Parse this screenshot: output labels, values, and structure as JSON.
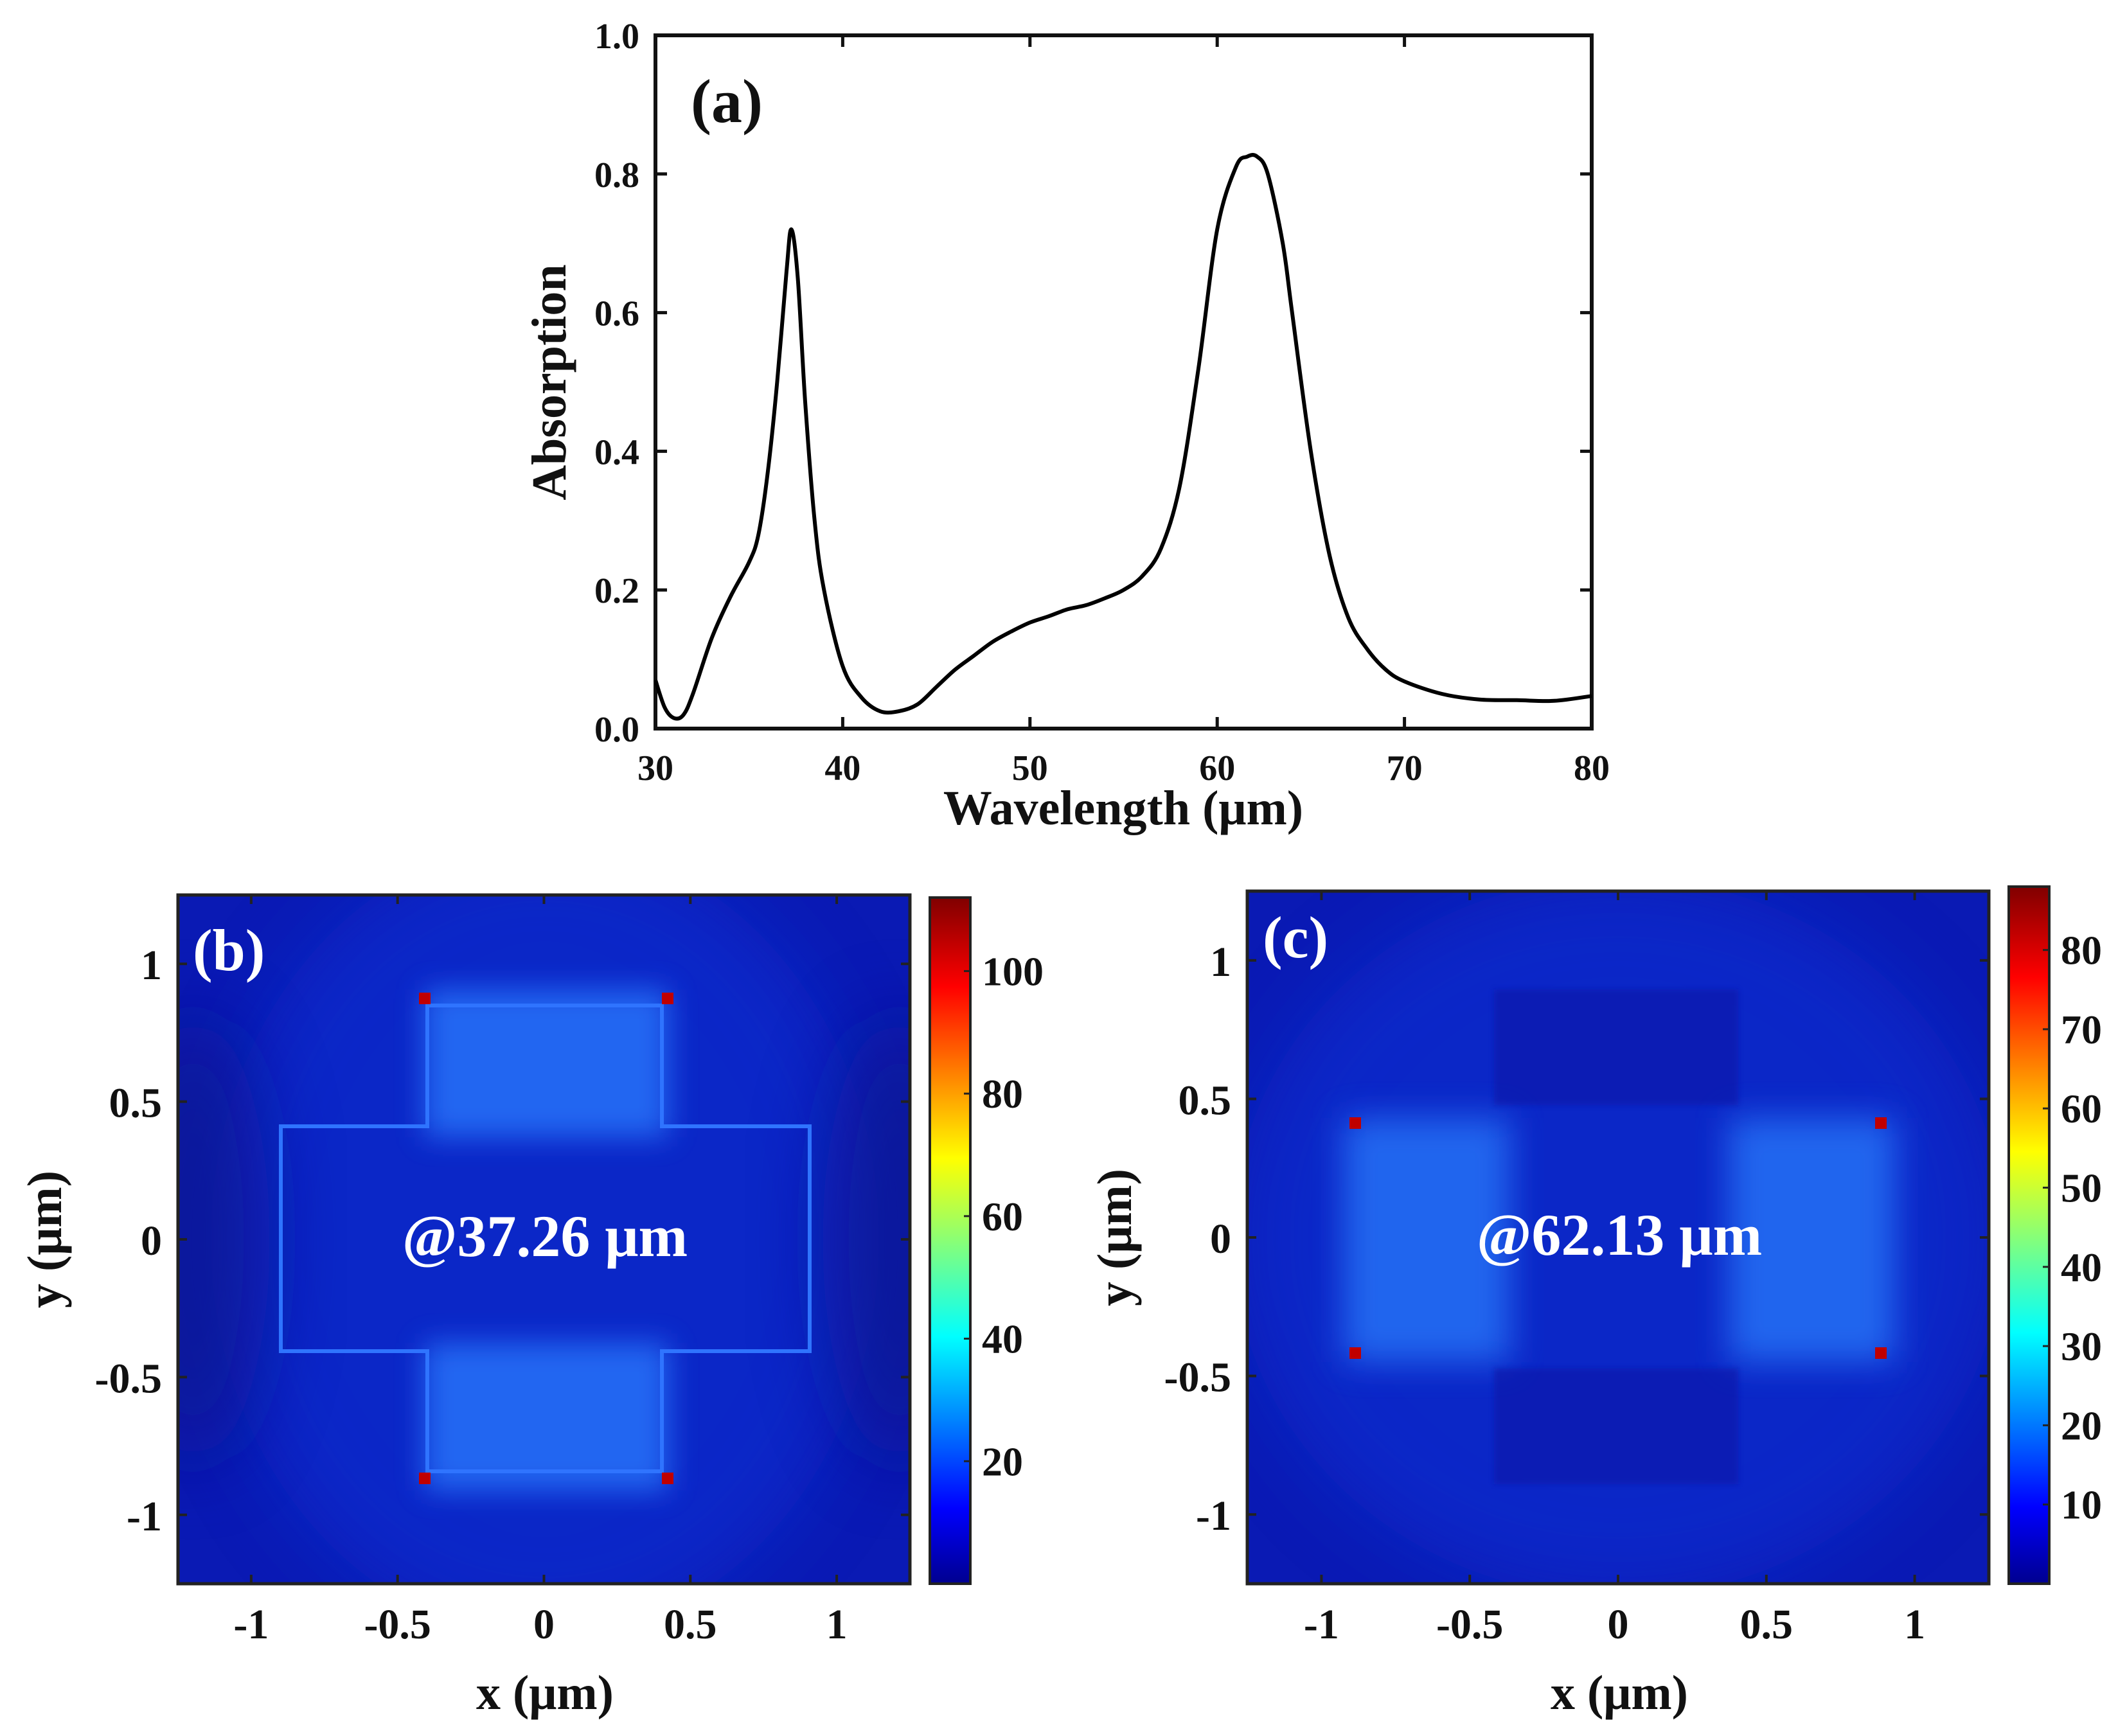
{
  "chart_data": [
    {
      "id": "a",
      "type": "line",
      "panel_label": "(a)",
      "xlabel": "Wavelength (μm)",
      "ylabel": "Absorption",
      "xlim": [
        30,
        80
      ],
      "ylim": [
        0.0,
        1.0
      ],
      "xticks": [
        30,
        40,
        50,
        60,
        70,
        80
      ],
      "xtick_labels": [
        "30",
        "40",
        "50",
        "60",
        "70",
        "80"
      ],
      "yticks": [
        0.0,
        0.2,
        0.4,
        0.6,
        0.8,
        1.0
      ],
      "ytick_labels": [
        "0.0",
        "0.2",
        "0.4",
        "0.6",
        "0.8",
        "1.0"
      ],
      "grid": false,
      "series": [
        {
          "name": "Absorption",
          "x": [
            30,
            30.5,
            31,
            31.5,
            32,
            33,
            34,
            35,
            35.5,
            36,
            36.5,
            37,
            37.26,
            37.6,
            38,
            38.5,
            39,
            40,
            41,
            42,
            43,
            44,
            45,
            46,
            47,
            48,
            49,
            50,
            51,
            52,
            53,
            54,
            55,
            56,
            57,
            58,
            59,
            60,
            61,
            61.6,
            62.13,
            62.7,
            63.5,
            64,
            65,
            66,
            67,
            68,
            69,
            70,
            72,
            74,
            76,
            78,
            80
          ],
          "y": [
            0.07,
            0.03,
            0.015,
            0.02,
            0.05,
            0.13,
            0.19,
            0.24,
            0.28,
            0.37,
            0.5,
            0.66,
            0.72,
            0.65,
            0.47,
            0.3,
            0.2,
            0.09,
            0.045,
            0.025,
            0.025,
            0.035,
            0.06,
            0.085,
            0.105,
            0.125,
            0.14,
            0.153,
            0.162,
            0.172,
            0.178,
            0.188,
            0.2,
            0.22,
            0.26,
            0.35,
            0.52,
            0.72,
            0.81,
            0.825,
            0.825,
            0.8,
            0.7,
            0.6,
            0.4,
            0.25,
            0.16,
            0.115,
            0.085,
            0.068,
            0.05,
            0.042,
            0.041,
            0.04,
            0.047
          ]
        }
      ]
    },
    {
      "id": "b",
      "type": "heatmap",
      "panel_label": "(b)",
      "annotation": "@37.26 μm",
      "xlabel": "x (μm)",
      "ylabel": "y (μm)",
      "xlim": [
        -1.25,
        1.25
      ],
      "ylim": [
        -1.25,
        1.25
      ],
      "xticks": [
        -1,
        -0.5,
        0,
        0.5,
        1
      ],
      "xtick_labels": [
        "-1",
        "-0.5",
        "0",
        "0.5",
        "1"
      ],
      "yticks": [
        -1,
        -0.5,
        0,
        0.5,
        1
      ],
      "ytick_labels": [
        "-1",
        "-0.5",
        "0",
        "0.5",
        "1"
      ],
      "colorbar": {
        "min": 0,
        "max": 112,
        "ticks": [
          20,
          40,
          60,
          80,
          100
        ],
        "tick_labels": [
          "20",
          "40",
          "60",
          "80",
          "100"
        ]
      }
    },
    {
      "id": "c",
      "type": "heatmap",
      "panel_label": "(c)",
      "annotation": "@62.13 μm",
      "xlabel": "x (μm)",
      "ylabel": "y (μm)",
      "xlim": [
        -1.25,
        1.25
      ],
      "ylim": [
        -1.25,
        1.25
      ],
      "xticks": [
        -1,
        -0.5,
        0,
        0.5,
        1
      ],
      "xtick_labels": [
        "-1",
        "-0.5",
        "0",
        "0.5",
        "1"
      ],
      "yticks": [
        -1,
        -0.5,
        0,
        0.5,
        1
      ],
      "ytick_labels": [
        "-1",
        "-0.5",
        "0",
        "0.5",
        "1"
      ],
      "colorbar": {
        "min": 0,
        "max": 88,
        "ticks": [
          10,
          20,
          30,
          40,
          50,
          60,
          70,
          80
        ],
        "tick_labels": [
          "10",
          "20",
          "30",
          "40",
          "50",
          "60",
          "70",
          "80"
        ]
      }
    }
  ]
}
